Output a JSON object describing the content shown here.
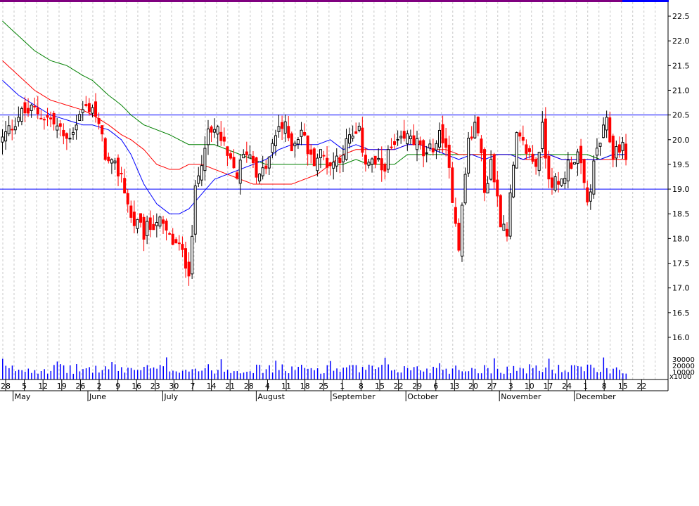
{
  "chart_data": {
    "type": "candlestick",
    "title": "",
    "xlabel": "",
    "ylabel": "",
    "ylim": [
      15.6,
      22.9
    ],
    "price_ticks": [
      "16.0",
      "16.5",
      "17.0",
      "17.5",
      "18.0",
      "18.5",
      "19.0",
      "19.5",
      "20.0",
      "20.5",
      "21.0",
      "21.5",
      "22.0",
      "22.5"
    ],
    "volume_ticks": [
      "30000",
      "20000",
      "10000"
    ],
    "volume_unit": "x1000",
    "day_ticks": [
      "28",
      "5",
      "12",
      "19",
      "26",
      "2",
      "9",
      "16",
      "23",
      "30",
      "7",
      "14",
      "21",
      "28",
      "4",
      "11",
      "18",
      "25",
      "1",
      "8",
      "15",
      "22",
      "29",
      "6",
      "13",
      "20",
      "27",
      "3",
      "10",
      "17",
      "24",
      "1",
      "8",
      "15",
      "22"
    ],
    "month_labels": [
      "May",
      "June",
      "July",
      "August",
      "September",
      "October",
      "November",
      "December"
    ],
    "horizontal_levels": [
      20.5,
      19.0
    ],
    "colors": {
      "up": "#000000",
      "down": "#ff0000",
      "ma_short": "#0000ff",
      "ma_mid": "#ff0000",
      "ma_long": "#008000",
      "level_line": "#0000ff",
      "grid": "#c8c8c8",
      "volume": "#0000ff",
      "top_bar": "#800080"
    },
    "anchors": {
      "close": [
        [
          0,
          20.0
        ],
        [
          5,
          20.5
        ],
        [
          10,
          20.6
        ],
        [
          15,
          20.4
        ],
        [
          20,
          20.0
        ],
        [
          25,
          20.6
        ],
        [
          28,
          20.7
        ],
        [
          33,
          19.5
        ],
        [
          37,
          19.3
        ],
        [
          40,
          18.4
        ],
        [
          44,
          18.1
        ],
        [
          48,
          18.4
        ],
        [
          52,
          18.0
        ],
        [
          55,
          17.8
        ],
        [
          58,
          17.4
        ],
        [
          60,
          18.9
        ],
        [
          63,
          20.0
        ],
        [
          67,
          20.2
        ],
        [
          70,
          19.6
        ],
        [
          73,
          19.3
        ],
        [
          76,
          19.8
        ],
        [
          78,
          19.6
        ],
        [
          80,
          19.2
        ],
        [
          83,
          19.6
        ],
        [
          86,
          20.3
        ],
        [
          88,
          20.2
        ],
        [
          90,
          19.9
        ],
        [
          93,
          20.2
        ],
        [
          96,
          19.6
        ],
        [
          99,
          19.7
        ],
        [
          102,
          19.5
        ],
        [
          105,
          19.7
        ],
        [
          108,
          20.0
        ],
        [
          111,
          20.1
        ],
        [
          113,
          19.6
        ],
        [
          116,
          19.5
        ],
        [
          118,
          19.4
        ],
        [
          121,
          19.8
        ],
        [
          124,
          19.9
        ],
        [
          127,
          20.1
        ],
        [
          130,
          19.8
        ],
        [
          132,
          19.6
        ],
        [
          134,
          19.9
        ],
        [
          137,
          20.1
        ],
        [
          140,
          18.9
        ],
        [
          142,
          17.9
        ],
        [
          145,
          20.0
        ],
        [
          148,
          20.3
        ],
        [
          150,
          18.9
        ],
        [
          152,
          19.6
        ],
        [
          155,
          18.4
        ],
        [
          157,
          18.2
        ],
        [
          160,
          20.0
        ],
        [
          163,
          19.8
        ],
        [
          166,
          19.5
        ],
        [
          168,
          20.2
        ],
        [
          170,
          19.3
        ],
        [
          173,
          19.0
        ],
        [
          176,
          19.5
        ],
        [
          179,
          19.7
        ],
        [
          182,
          18.7
        ],
        [
          185,
          19.8
        ],
        [
          188,
          20.3
        ],
        [
          190,
          19.7
        ],
        [
          192,
          19.9
        ],
        [
          194,
          19.7
        ]
      ],
      "ma_short": [
        [
          0,
          21.2
        ],
        [
          5,
          20.9
        ],
        [
          10,
          20.7
        ],
        [
          15,
          20.5
        ],
        [
          20,
          20.4
        ],
        [
          25,
          20.3
        ],
        [
          28,
          20.3
        ],
        [
          33,
          20.2
        ],
        [
          37,
          20.0
        ],
        [
          40,
          19.7
        ],
        [
          44,
          19.1
        ],
        [
          48,
          18.7
        ],
        [
          52,
          18.5
        ],
        [
          55,
          18.5
        ],
        [
          58,
          18.6
        ],
        [
          62,
          18.9
        ],
        [
          66,
          19.2
        ],
        [
          70,
          19.3
        ],
        [
          74,
          19.4
        ],
        [
          78,
          19.5
        ],
        [
          82,
          19.6
        ],
        [
          86,
          19.8
        ],
        [
          90,
          19.9
        ],
        [
          94,
          19.9
        ],
        [
          98,
          19.9
        ],
        [
          102,
          20.0
        ],
        [
          106,
          19.8
        ],
        [
          110,
          19.9
        ],
        [
          114,
          19.8
        ],
        [
          118,
          19.8
        ],
        [
          122,
          19.8
        ],
        [
          126,
          19.9
        ],
        [
          130,
          19.9
        ],
        [
          134,
          19.8
        ],
        [
          138,
          19.7
        ],
        [
          142,
          19.6
        ],
        [
          146,
          19.7
        ],
        [
          150,
          19.6
        ],
        [
          154,
          19.7
        ],
        [
          158,
          19.7
        ],
        [
          162,
          19.6
        ],
        [
          166,
          19.7
        ],
        [
          170,
          19.7
        ],
        [
          174,
          19.6
        ],
        [
          178,
          19.6
        ],
        [
          182,
          19.6
        ],
        [
          186,
          19.6
        ],
        [
          190,
          19.7
        ],
        [
          194,
          19.7
        ]
      ],
      "ma_mid": [
        [
          0,
          21.6
        ],
        [
          5,
          21.3
        ],
        [
          10,
          21.0
        ],
        [
          15,
          20.8
        ],
        [
          20,
          20.7
        ],
        [
          25,
          20.6
        ],
        [
          28,
          20.5
        ],
        [
          33,
          20.3
        ],
        [
          37,
          20.1
        ],
        [
          40,
          20.0
        ],
        [
          44,
          19.8
        ],
        [
          48,
          19.5
        ],
        [
          52,
          19.4
        ],
        [
          55,
          19.4
        ],
        [
          58,
          19.5
        ],
        [
          62,
          19.5
        ],
        [
          66,
          19.4
        ],
        [
          70,
          19.3
        ],
        [
          74,
          19.2
        ],
        [
          78,
          19.1
        ],
        [
          82,
          19.1
        ],
        [
          86,
          19.1
        ],
        [
          90,
          19.1
        ],
        [
          94,
          19.2
        ],
        [
          98,
          19.3
        ],
        [
          102,
          19.5
        ],
        [
          106,
          19.7
        ],
        [
          110,
          19.8
        ],
        [
          114,
          19.8
        ],
        [
          118,
          19.8
        ],
        [
          122,
          19.8
        ],
        [
          126,
          19.9
        ],
        [
          130,
          19.9
        ],
        [
          134,
          19.8
        ],
        [
          138,
          19.8
        ],
        [
          142,
          19.7
        ],
        [
          146,
          19.7
        ],
        [
          150,
          19.7
        ],
        [
          154,
          19.7
        ],
        [
          158,
          19.7
        ],
        [
          162,
          19.6
        ],
        [
          166,
          19.6
        ],
        [
          170,
          19.7
        ],
        [
          174,
          19.6
        ],
        [
          178,
          19.6
        ],
        [
          182,
          19.6
        ],
        [
          186,
          19.6
        ],
        [
          190,
          19.6
        ],
        [
          194,
          19.6
        ]
      ],
      "ma_long": [
        [
          0,
          22.4
        ],
        [
          5,
          22.1
        ],
        [
          10,
          21.8
        ],
        [
          15,
          21.6
        ],
        [
          20,
          21.5
        ],
        [
          25,
          21.3
        ],
        [
          28,
          21.2
        ],
        [
          33,
          20.9
        ],
        [
          37,
          20.7
        ],
        [
          40,
          20.5
        ],
        [
          44,
          20.3
        ],
        [
          48,
          20.2
        ],
        [
          52,
          20.1
        ],
        [
          55,
          20.0
        ],
        [
          58,
          19.9
        ],
        [
          62,
          19.9
        ],
        [
          66,
          19.9
        ],
        [
          70,
          19.8
        ],
        [
          74,
          19.7
        ],
        [
          78,
          19.6
        ],
        [
          82,
          19.5
        ],
        [
          86,
          19.5
        ],
        [
          90,
          19.5
        ],
        [
          94,
          19.5
        ],
        [
          98,
          19.5
        ],
        [
          102,
          19.5
        ],
        [
          106,
          19.5
        ],
        [
          110,
          19.6
        ],
        [
          114,
          19.5
        ],
        [
          118,
          19.5
        ],
        [
          122,
          19.5
        ],
        [
          126,
          19.7
        ],
        [
          130,
          19.7
        ],
        [
          134,
          19.7
        ],
        [
          138,
          19.7
        ],
        [
          142,
          19.7
        ],
        [
          146,
          19.7
        ],
        [
          150,
          19.7
        ],
        [
          154,
          19.7
        ],
        [
          158,
          19.7
        ],
        [
          162,
          19.7
        ],
        [
          166,
          19.7
        ],
        [
          170,
          19.7
        ],
        [
          174,
          19.7
        ],
        [
          178,
          19.7
        ],
        [
          182,
          19.7
        ],
        [
          186,
          19.6
        ],
        [
          190,
          19.7
        ],
        [
          194,
          19.7
        ]
      ]
    },
    "series": [
      {
        "type": "candlestick"
      },
      {
        "type": "line"
      },
      {
        "type": "line"
      },
      {
        "type": "line"
      },
      {
        "type": "bar"
      }
    ]
  }
}
